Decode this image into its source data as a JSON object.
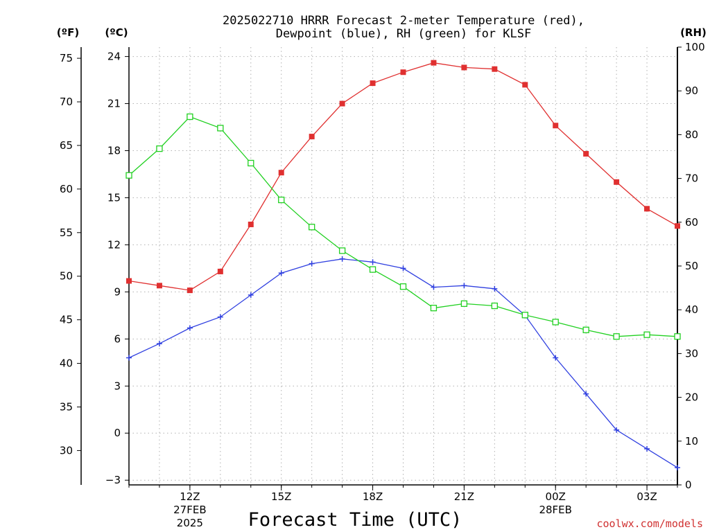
{
  "chart_data": {
    "type": "line",
    "title_line1": "2025022710 HRRR Forecast 2-meter Temperature (red),",
    "title_line2": "Dewpoint (blue), RH (green) for KLSF",
    "xlabel": "Forecast Time (UTC)",
    "credit": "coolwx.com/models",
    "axes": {
      "left_outer": {
        "unit": "(ºF)",
        "ticks": [
          30,
          35,
          40,
          45,
          50,
          55,
          60,
          65,
          70,
          75
        ]
      },
      "left_inner": {
        "unit": "(ºC)",
        "ticks": [
          -3,
          0,
          3,
          6,
          9,
          12,
          15,
          18,
          21,
          24
        ],
        "ylim": [
          -3.3,
          24.6
        ]
      },
      "right": {
        "unit": "(RH)",
        "ticks": [
          0,
          10,
          20,
          30,
          40,
          50,
          60,
          70,
          80,
          90,
          100
        ],
        "ylim": [
          0,
          100
        ]
      }
    },
    "x_hours": [
      10,
      11,
      12,
      13,
      14,
      15,
      16,
      17,
      18,
      19,
      20,
      21,
      22,
      23,
      24,
      25,
      26,
      27,
      28
    ],
    "xlim": [
      10,
      28
    ],
    "x_ticks": [
      {
        "hour": 12,
        "label": "12Z",
        "sub1": "27FEB",
        "sub2": "2025"
      },
      {
        "hour": 15,
        "label": "15Z"
      },
      {
        "hour": 18,
        "label": "18Z"
      },
      {
        "hour": 21,
        "label": "21Z"
      },
      {
        "hour": 24,
        "label": "00Z",
        "sub1": "28FEB"
      },
      {
        "hour": 27,
        "label": "03Z"
      }
    ],
    "grid": true,
    "series": [
      {
        "name": "Temperature",
        "color": "#e03030",
        "marker": "filled-square",
        "axis": "celsius",
        "values": [
          9.7,
          9.4,
          9.1,
          10.3,
          13.3,
          16.6,
          18.9,
          21.0,
          22.3,
          23.0,
          23.6,
          23.3,
          23.2,
          22.2,
          19.6,
          17.8,
          16.0,
          14.3,
          13.2
        ]
      },
      {
        "name": "Dewpoint",
        "color": "#3040e0",
        "marker": "plus",
        "axis": "celsius",
        "values": [
          4.8,
          5.7,
          6.7,
          7.4,
          8.8,
          10.2,
          10.8,
          11.1,
          10.9,
          10.5,
          9.3,
          9.4,
          9.2,
          7.5,
          4.8,
          2.5,
          0.2,
          -1.0,
          -2.2
        ]
      },
      {
        "name": "RH",
        "color": "#20d020",
        "marker": "open-square",
        "axis": "rh",
        "values": [
          70.7,
          76.8,
          84.1,
          81.5,
          73.5,
          65.1,
          58.9,
          53.5,
          49.2,
          45.3,
          40.4,
          41.4,
          40.9,
          38.8,
          37.2,
          35.4,
          33.9,
          34.3,
          33.9
        ]
      }
    ]
  }
}
